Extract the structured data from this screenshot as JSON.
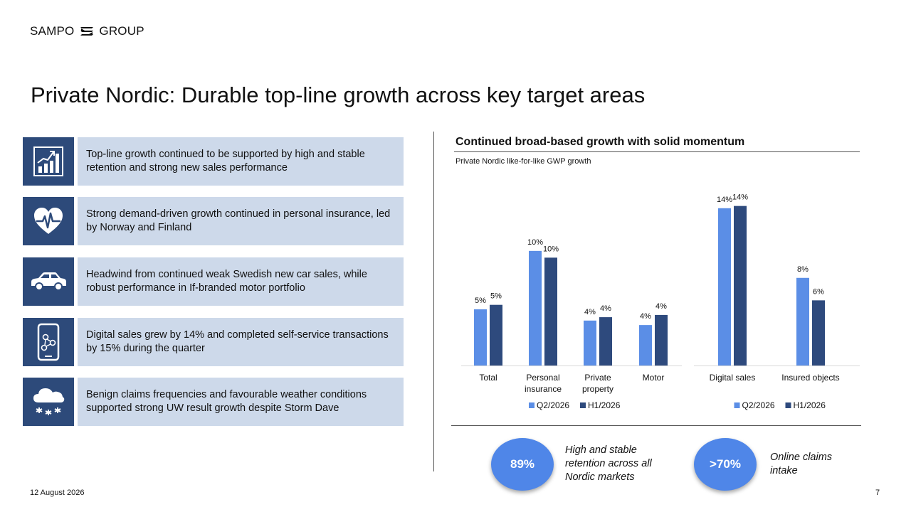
{
  "brand": {
    "left": "SAMPO",
    "right": "GROUP"
  },
  "title": "Private Nordic: Durable top-line growth across key target areas",
  "rows": [
    {
      "icon": "bar-chart-growth-icon",
      "text": "Top-line growth continued to be supported by high and stable retention and strong new sales performance"
    },
    {
      "icon": "heart-pulse-icon",
      "text": "Strong demand-driven growth continued in personal insurance, led by Norway and Finland"
    },
    {
      "icon": "car-icon",
      "text": "Headwind from continued weak Swedish new car sales, while robust performance in If-branded motor portfolio"
    },
    {
      "icon": "smartphone-network-icon",
      "text": "Digital sales grew by 14% and completed self-service transactions by 15% during the quarter"
    },
    {
      "icon": "snow-cloud-icon",
      "text": "Benign claims frequencies and favourable weather conditions supported strong UW result growth despite Storm Dave"
    }
  ],
  "chart_heading": "Continued broad-based growth with solid momentum",
  "chart_subtitle": "Private Nordic like-for-like GWP growth",
  "colors": {
    "q2": "#5b8ee6",
    "h1": "#2e4a7d",
    "icon_bg": "#2d4a7a",
    "text_bg": "#cdd9ea",
    "circle": "#4f86e8"
  },
  "chart_data": [
    {
      "type": "bar",
      "categories": [
        "Total",
        "Personal insurance",
        "Private property",
        "Motor"
      ],
      "series": [
        {
          "name": "Q2/2026",
          "values": [
            5,
            10,
            4,
            4
          ]
        },
        {
          "name": "H1/2026",
          "values": [
            5,
            10,
            4,
            4
          ]
        }
      ],
      "labels": [
        [
          "5%",
          "10%",
          "4%",
          "4%"
        ],
        [
          "5%",
          "10%",
          "4%",
          "4%"
        ]
      ],
      "actual": [
        [
          5.0,
          10.2,
          4.0,
          3.6
        ],
        [
          5.4,
          9.6,
          4.3,
          4.5
        ]
      ],
      "legend": "bottom"
    },
    {
      "type": "bar",
      "categories": [
        "Digital sales",
        "Insured objects"
      ],
      "series": [
        {
          "name": "Q2/2026",
          "values": [
            14,
            8
          ]
        },
        {
          "name": "H1/2026",
          "values": [
            14,
            6
          ]
        }
      ],
      "labels": [
        [
          "14%",
          "8%"
        ],
        [
          "14%",
          "6%"
        ]
      ],
      "actual": [
        [
          14.0,
          7.8
        ],
        [
          14.2,
          5.8
        ]
      ],
      "legend": "bottom"
    }
  ],
  "stats": [
    {
      "value": "89%",
      "text": "High and stable retention across all Nordic markets"
    },
    {
      "value": ">70%",
      "text": "Online claims intake"
    }
  ],
  "footer": {
    "date": "12 August 2026",
    "page": "7"
  }
}
